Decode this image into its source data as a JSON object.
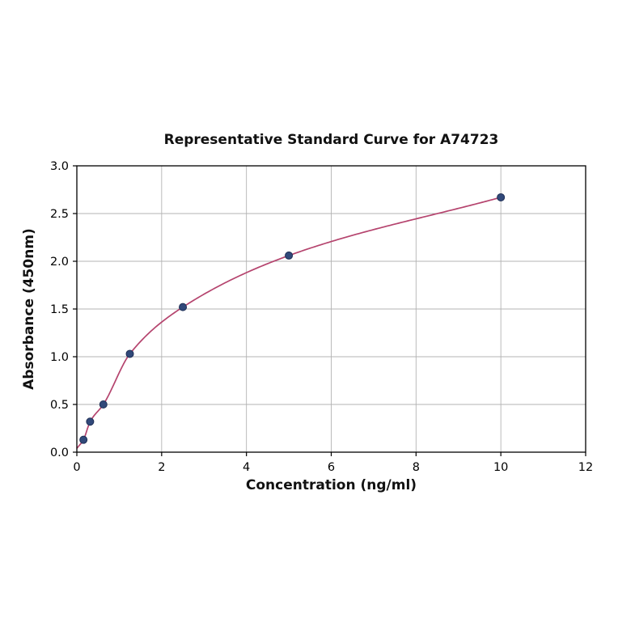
{
  "chart_data": {
    "type": "scatter",
    "title": "Representative Standard Curve for A74723",
    "xlabel": "Concentration (ng/ml)",
    "ylabel": "Absorbance (450nm)",
    "xlim": [
      0,
      12
    ],
    "ylim": [
      0.0,
      3.0
    ],
    "xticks": [
      0,
      2,
      4,
      6,
      8,
      10,
      12
    ],
    "yticks": [
      0.0,
      0.5,
      1.0,
      1.5,
      2.0,
      2.5,
      3.0
    ],
    "grid": true,
    "legend": null,
    "points": [
      {
        "x": 0.156,
        "y": 0.13
      },
      {
        "x": 0.3125,
        "y": 0.32
      },
      {
        "x": 0.625,
        "y": 0.5
      },
      {
        "x": 1.25,
        "y": 1.03
      },
      {
        "x": 2.5,
        "y": 1.52
      },
      {
        "x": 5,
        "y": 2.06
      },
      {
        "x": 10,
        "y": 2.67
      }
    ],
    "curve": {
      "type": "fitted-standard-curve",
      "anchor_points": [
        [
          0,
          0.04
        ],
        [
          0.156,
          0.13
        ],
        [
          0.3125,
          0.32
        ],
        [
          0.625,
          0.5
        ],
        [
          1.25,
          1.03
        ],
        [
          2.5,
          1.52
        ],
        [
          5,
          2.06
        ],
        [
          10,
          2.67
        ]
      ]
    },
    "colors": {
      "point": "#31497a",
      "point_edge": "#1f2f55",
      "curve": "#b5446e",
      "grid": "#b3b3b3",
      "axis": "#000000",
      "background": "#ffffff"
    }
  }
}
